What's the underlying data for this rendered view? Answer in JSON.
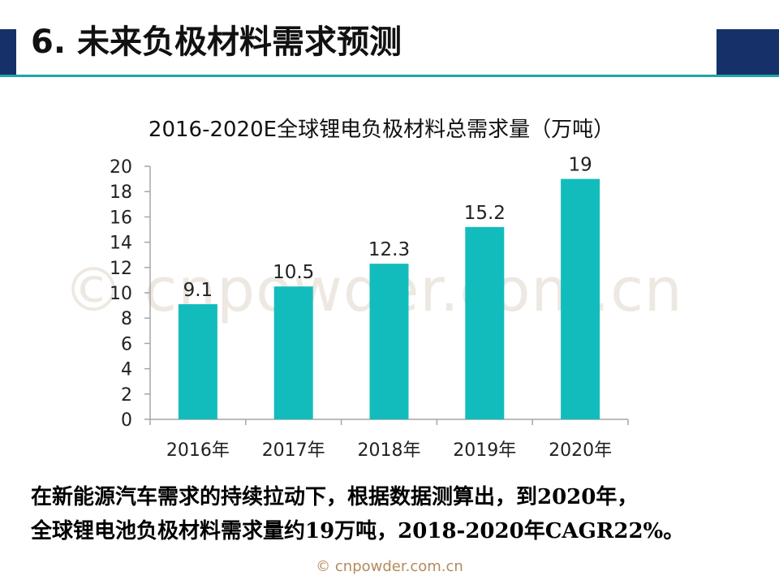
{
  "slide": {
    "title": "6. 未来负极材料需求预测",
    "watermark": "© cnpowder.com.cn",
    "footer": "© cnpowder.com.cn",
    "summary_lines": [
      "在新能源汽车需求的持续拉动下，根据数据测算出，到2020年，",
      "全球锂电池负极材料需求量约19万吨，2018-2020年CAGR22%。"
    ],
    "colors": {
      "accent_navy": "#16306a",
      "teal": "#1aa7a7",
      "bar": "#13bcbc"
    }
  },
  "chart_data": {
    "type": "bar",
    "title": "2016-2020E全球锂电负极材料总需求量（万吨）",
    "categories": [
      "2016年",
      "2017年",
      "2018年",
      "2019年",
      "2020年"
    ],
    "values": [
      9.1,
      10.5,
      12.3,
      15.2,
      19
    ],
    "data_labels": [
      "9.1",
      "10.5",
      "12.3",
      "15.2",
      "19"
    ],
    "ylim": [
      0,
      20
    ],
    "yticks": [
      0,
      2,
      4,
      6,
      8,
      10,
      12,
      14,
      16,
      18,
      20
    ],
    "grid": false,
    "legend": "none"
  }
}
